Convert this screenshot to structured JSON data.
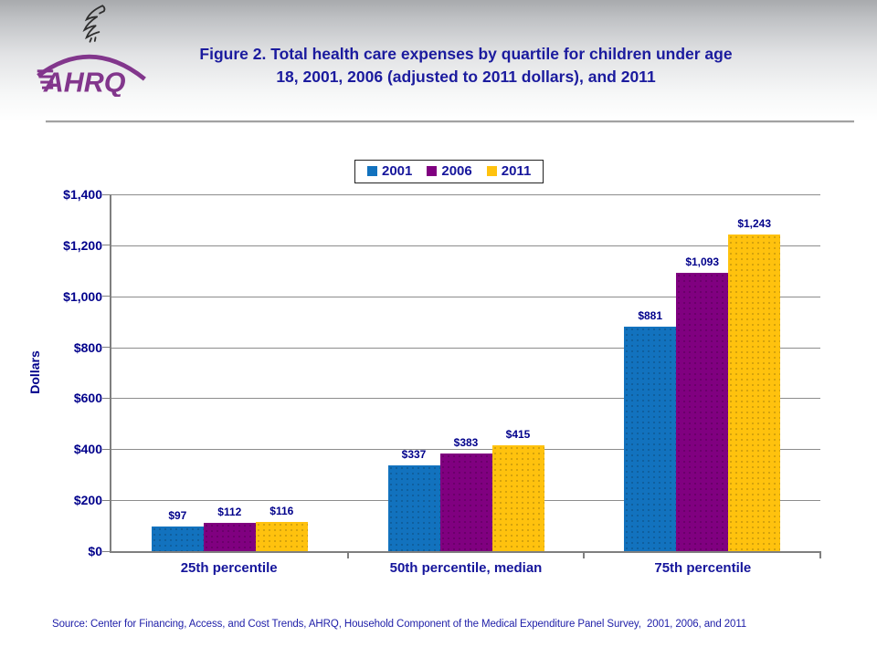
{
  "header": {
    "logo": {
      "text": "AHRQ",
      "brand_color": "#82368C"
    },
    "title": "Figure 2. Total health care expenses by quartile for children under age 18, 2001, 2006 (adjusted to 2011 dollars), and 2011",
    "title_color": "#1B1B9E"
  },
  "chart_data": {
    "type": "bar",
    "categories": [
      "25th percentile",
      "50th percentile, median",
      "75th percentile"
    ],
    "series": [
      {
        "name": "2001",
        "color": "#1272BE",
        "values": [
          97,
          337,
          881
        ]
      },
      {
        "name": "2006",
        "color": "#800080",
        "values": [
          112,
          383,
          1093
        ]
      },
      {
        "name": "2011",
        "color": "#FFC20E",
        "values": [
          116,
          415,
          1243
        ]
      }
    ],
    "xlabel": "",
    "ylabel": "Dollars",
    "ylim": [
      0,
      1400
    ],
    "ytick_step": 200,
    "ytick_format": "$#,###",
    "grid": true,
    "legend_position": "top-center",
    "axis_text_color": "#00008B"
  },
  "footer": {
    "source": "Source: Center for Financing, Access, and Cost Trends, AHRQ, Household Component of the Medical Expenditure Panel Survey,  2001, 2006, and 2011"
  }
}
